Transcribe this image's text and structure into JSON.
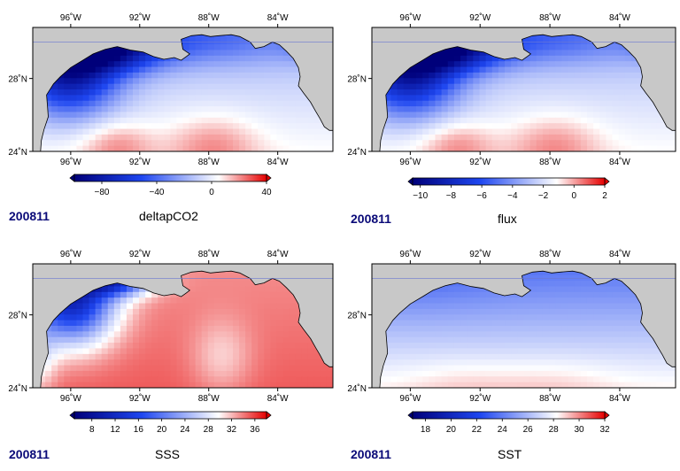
{
  "panels": [
    {
      "id": "deltapco2",
      "date": "200811",
      "variable": "deltapCO2",
      "lon_labels": [
        "96˚W",
        "92˚W",
        "88˚W",
        "84˚W"
      ],
      "lat_labels": [
        "24˚N",
        "28˚N"
      ],
      "colorbar": {
        "ticks": [
          "−80",
          "−40",
          "0",
          "40"
        ],
        "range": [
          -100,
          40
        ]
      },
      "field_pattern": "strong-negative-northwest-shelf"
    },
    {
      "id": "flux",
      "date": "200811",
      "variable": "flux",
      "lon_labels": [
        "96˚W",
        "92˚W",
        "88˚W",
        "84˚W"
      ],
      "lat_labels": [
        "24˚N",
        "28˚N"
      ],
      "colorbar": {
        "ticks": [
          "−10",
          "−8",
          "−6",
          "−4",
          "−2",
          "0",
          "2"
        ],
        "range": [
          -10.5,
          2
        ]
      },
      "field_pattern": "strong-negative-northwest-shelf"
    },
    {
      "id": "sss",
      "date": "200811",
      "variable": "SSS",
      "lon_labels": [
        "96˚W",
        "92˚W",
        "88˚W",
        "84˚W"
      ],
      "lat_labels": [
        "24˚N",
        "28˚N"
      ],
      "colorbar": {
        "ticks": [
          "8",
          "12",
          "16",
          "20",
          "24",
          "28",
          "32",
          "36"
        ],
        "range": [
          5,
          38
        ]
      },
      "field_pattern": "fresh-coastal-salty-open"
    },
    {
      "id": "sst",
      "date": "200811",
      "variable": "SST",
      "lon_labels": [
        "96˚W",
        "92˚W",
        "88˚W",
        "84˚W"
      ],
      "lat_labels": [
        "24˚N",
        "28˚N"
      ],
      "colorbar": {
        "ticks": [
          "18",
          "20",
          "22",
          "24",
          "26",
          "28",
          "30",
          "32"
        ],
        "range": [
          17,
          32
        ]
      },
      "field_pattern": "cool-north-warm-south"
    }
  ],
  "colors": {
    "land": "#c8c8c8",
    "dark_blue": "#00007a",
    "blue": "#1e46f0",
    "white": "#ffffff",
    "red": "#e60000",
    "date_text": "#0a0a78",
    "gridline": "#6c78d2"
  }
}
